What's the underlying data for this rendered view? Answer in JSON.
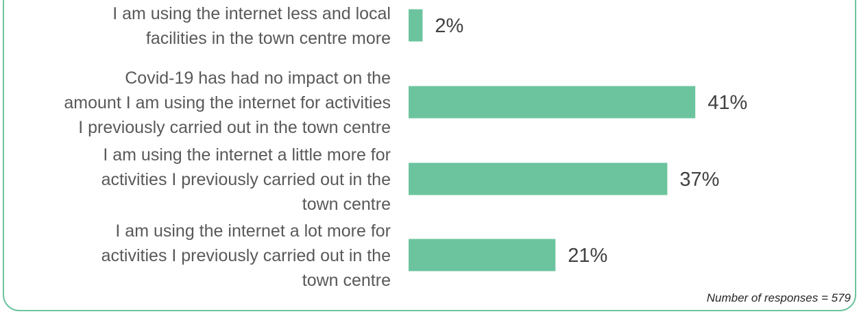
{
  "chart_data": {
    "type": "bar",
    "orientation": "horizontal",
    "categories": [
      [
        "I am using the internet less and local",
        "facilities in the town centre more"
      ],
      [
        "Covid-19 has had no impact on the",
        "amount I am using the internet for activities",
        "I previously carried out in the town centre"
      ],
      [
        "I am using the internet a little more for",
        "activities I previously carried out in the",
        "town centre"
      ],
      [
        "I am using the internet a lot more for",
        "activities I previously carried out in the",
        "town centre"
      ]
    ],
    "values": [
      2,
      41,
      37,
      21
    ],
    "value_labels": [
      "2%",
      "41%",
      "37%",
      "21%"
    ],
    "unit": "%",
    "bar_color": "#6cc49f",
    "xlim": [
      0,
      47
    ],
    "grid": false,
    "legend": "none"
  },
  "footnote": "Number of responses = 579"
}
